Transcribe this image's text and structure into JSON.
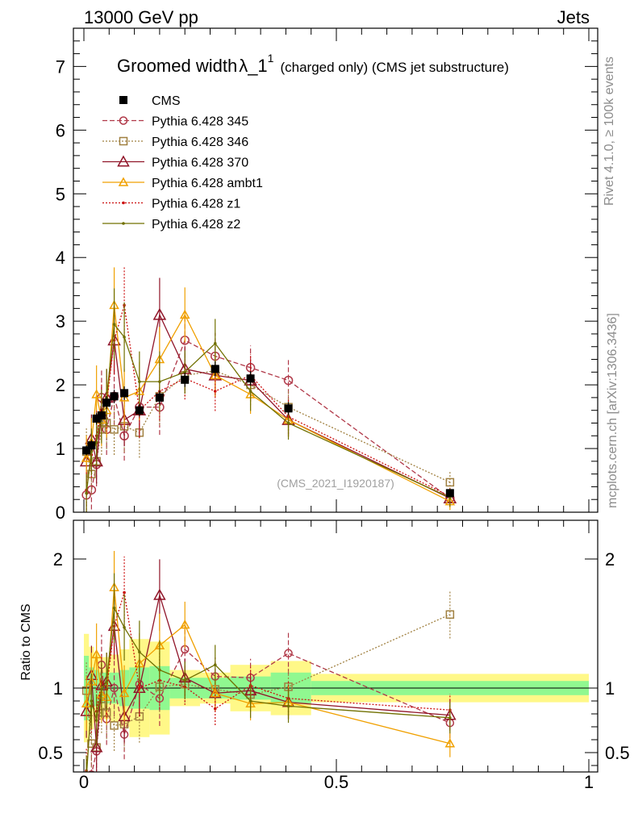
{
  "header": {
    "left_label": "13000 GeV pp",
    "right_label": "Jets"
  },
  "side_labels": {
    "rivet": "Rivet 4.1.0, ≥ 100k events",
    "mcplots": "mcplots.cern.ch [arXiv:1306.3436]"
  },
  "colors": {
    "CMS": "#000000",
    "p345": "#b03848",
    "p346": "#a08040",
    "p370": "#901428",
    "ambt1": "#f0a000",
    "z1": "#cc1010",
    "z2": "#707000",
    "band_inner": "#90f890",
    "band_outer": "#fff888"
  },
  "chart_data": [
    {
      "panel": "main",
      "type": "line",
      "title_main": "Groomed width",
      "title_symbol": "λ_1",
      "title_sup": "1",
      "title_suffix": "(charged only) (CMS jet substructure)",
      "watermark": "(CMS_2021_I1920187)",
      "xlim": [
        0,
        1
      ],
      "ylim": [
        0,
        7.6
      ],
      "yticks": [
        0,
        1,
        2,
        3,
        4,
        5,
        6,
        7
      ],
      "ytick_labels": [
        "0",
        "1",
        "2",
        "3",
        "4",
        "5",
        "6",
        "7"
      ],
      "legend_position": "top-left",
      "x": [
        0.005,
        0.015,
        0.025,
        0.035,
        0.045,
        0.06,
        0.08,
        0.11,
        0.15,
        0.2,
        0.26,
        0.33,
        0.405,
        0.725
      ],
      "series": [
        {
          "key": "CMS",
          "name": "CMS",
          "style": "data",
          "values": [
            0.97,
            1.05,
            1.47,
            1.52,
            1.72,
            1.82,
            1.87,
            1.6,
            1.8,
            2.08,
            2.25,
            2.1,
            1.63,
            0.3
          ]
        },
        {
          "key": "p345",
          "name": "Pythia 6.428 345",
          "style": "circle-dashed",
          "values": [
            0.27,
            0.35,
            0.75,
            1.8,
            1.3,
            1.82,
            1.2,
            1.65,
            1.65,
            2.7,
            2.45,
            2.27,
            2.07,
            0.22
          ]
        },
        {
          "key": "p346",
          "name": "Pythia 6.428 346",
          "style": "square-dotted",
          "values": [
            0.95,
            0.6,
            0.8,
            1.3,
            1.4,
            1.3,
            1.35,
            1.25,
            1.82,
            2.15,
            2.22,
            2.0,
            1.65,
            0.47
          ]
        },
        {
          "key": "p370",
          "name": "Pythia 6.428 370",
          "style": "triangle-solid",
          "values": [
            0.8,
            1.15,
            0.8,
            1.55,
            1.8,
            2.7,
            1.45,
            1.6,
            3.1,
            2.25,
            2.15,
            2.07,
            1.45,
            0.22
          ]
        },
        {
          "key": "ambt1",
          "name": "Pythia 6.428 ambt1",
          "style": "smalltriangle-solid",
          "values": [
            0.85,
            1.1,
            1.85,
            1.45,
            1.6,
            3.25,
            1.8,
            1.9,
            2.4,
            3.1,
            2.15,
            1.85,
            1.45,
            0.17
          ]
        },
        {
          "key": "z1",
          "name": "Pythia 6.428 z1",
          "style": "dot-dotted",
          "values": [
            0.35,
            0.9,
            1.2,
            1.6,
            1.7,
            2.7,
            3.25,
            1.6,
            1.9,
            2.1,
            1.9,
            2.15,
            1.5,
            0.25
          ]
        },
        {
          "key": "z2",
          "name": "Pythia 6.428 z2",
          "style": "dot-solid",
          "values": [
            0.3,
            0.95,
            1.1,
            1.5,
            1.8,
            2.95,
            2.75,
            2.05,
            2.05,
            2.2,
            2.65,
            1.9,
            1.4,
            0.23
          ]
        }
      ]
    },
    {
      "panel": "ratio",
      "type": "line",
      "ylabel": "Ratio to CMS",
      "xlim": [
        0,
        1
      ],
      "ylim": [
        0.35,
        2.3
      ],
      "yticks": [
        0.5,
        1,
        2
      ],
      "ytick_labels": [
        "0.5",
        "1",
        "2"
      ],
      "xticks": [
        0,
        0.5,
        1
      ],
      "xtick_labels": [
        "0",
        "0.5",
        "1"
      ],
      "x": [
        0.005,
        0.015,
        0.025,
        0.035,
        0.045,
        0.06,
        0.08,
        0.11,
        0.15,
        0.2,
        0.26,
        0.33,
        0.405,
        0.725
      ],
      "bands": {
        "edges": [
          0,
          0.01,
          0.02,
          0.03,
          0.04,
          0.05,
          0.07,
          0.09,
          0.13,
          0.17,
          0.23,
          0.29,
          0.37,
          0.45,
          1.0
        ],
        "inner": [
          0.25,
          0.16,
          0.14,
          0.12,
          0.12,
          0.12,
          0.14,
          0.16,
          0.17,
          0.08,
          0.08,
          0.09,
          0.12,
          0.055
        ],
        "outer": [
          0.42,
          0.32,
          0.27,
          0.24,
          0.24,
          0.26,
          0.3,
          0.38,
          0.36,
          0.14,
          0.12,
          0.18,
          0.21,
          0.11
        ]
      },
      "series": [
        {
          "key": "p345",
          "values": [
            0.27,
            0.33,
            0.51,
            1.18,
            0.76,
            1.0,
            0.64,
            1.03,
            0.92,
            1.3,
            1.09,
            1.08,
            1.27,
            0.73
          ]
        },
        {
          "key": "p346",
          "values": [
            0.98,
            0.57,
            0.54,
            0.86,
            0.81,
            0.71,
            0.72,
            0.78,
            1.01,
            1.03,
            0.99,
            0.95,
            1.01,
            1.57
          ]
        },
        {
          "key": "p370",
          "values": [
            0.82,
            1.1,
            0.54,
            1.02,
            1.05,
            1.48,
            0.78,
            1.0,
            1.72,
            1.08,
            0.96,
            0.98,
            0.89,
            0.79
          ]
        },
        {
          "key": "ambt1",
          "values": [
            0.88,
            1.05,
            1.26,
            0.95,
            0.93,
            1.78,
            0.96,
            1.19,
            1.33,
            1.49,
            0.96,
            0.88,
            0.89,
            0.57
          ]
        },
        {
          "key": "z1",
          "values": [
            0.36,
            0.86,
            0.82,
            1.05,
            0.99,
            1.48,
            1.74,
            1.0,
            1.06,
            1.01,
            0.84,
            1.02,
            0.92,
            0.83
          ]
        },
        {
          "key": "z2",
          "values": [
            0.31,
            0.9,
            0.75,
            0.99,
            1.05,
            1.62,
            1.47,
            1.28,
            1.14,
            1.06,
            1.18,
            0.9,
            0.86,
            0.77
          ]
        }
      ]
    }
  ]
}
